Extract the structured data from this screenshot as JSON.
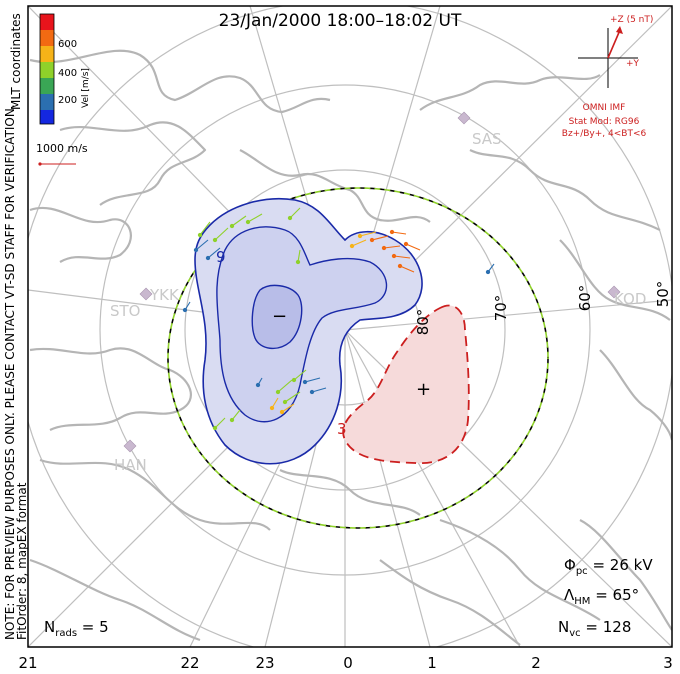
{
  "title": "23/Jan/2000 18:00–18:02 UT",
  "coord_label": "MLT coordinates",
  "colorbar": {
    "label": "Vel [m/s]",
    "ticks": [
      "600",
      "400",
      "200"
    ],
    "colors": [
      "#e8141c",
      "#f26a12",
      "#f6b318",
      "#8fd12a",
      "#3aa655",
      "#2b6fb0",
      "#1427e0"
    ]
  },
  "scale_label": "1000 m/s",
  "side_note": "NOTE: FOR PREVIEW PURPOSES ONLY. PLEASE CONTACT VT-SD STAFF FOR VERIFICATION.",
  "fit_note": "FitOrder: 8, mapEX format",
  "imf": {
    "bz_label": "+Z (5 nT)",
    "by_label": "+Y",
    "source": "OMNI IMF",
    "model": "Stat Mod: RG96",
    "condition": "Bz+/By+, 4<BT<6"
  },
  "stations": [
    "SAS",
    "KOD",
    "STO",
    "YKK",
    "HAN"
  ],
  "lat_labels": [
    "80°",
    "70°",
    "60°",
    "50°"
  ],
  "mlt_labels": [
    "21",
    "22",
    "23",
    "0",
    "1",
    "2",
    "3"
  ],
  "contours": {
    "neg_symbol": "−",
    "pos_symbol": "+",
    "neg_value": "9",
    "pos_value": "3"
  },
  "stats": {
    "phi_sym": "Φ",
    "phi_sub": "pc",
    "phi_val": " = 26 kV",
    "lambda_sym": "Λ",
    "lambda_sub": "HM",
    "lambda_val": " = 65°",
    "nvc_sym": "N",
    "nvc_sub": "vc",
    "nvc_val": " = 128",
    "nrads_sym": "N",
    "nrads_sub": "rads",
    "nrads_val": " = 5"
  },
  "colors": {
    "frame": "#000000",
    "grid": "#bfbfbf",
    "coast": "#b5b5b5",
    "neg_fill": "#d9dcf2",
    "neg_fill_inner": "#b8bde8",
    "neg_line": "#1a2aa8",
    "pos_fill": "#f6dada",
    "pos_line": "#cc1f1f",
    "imf": "#cc1f1f",
    "station": "#c9b8cf"
  }
}
